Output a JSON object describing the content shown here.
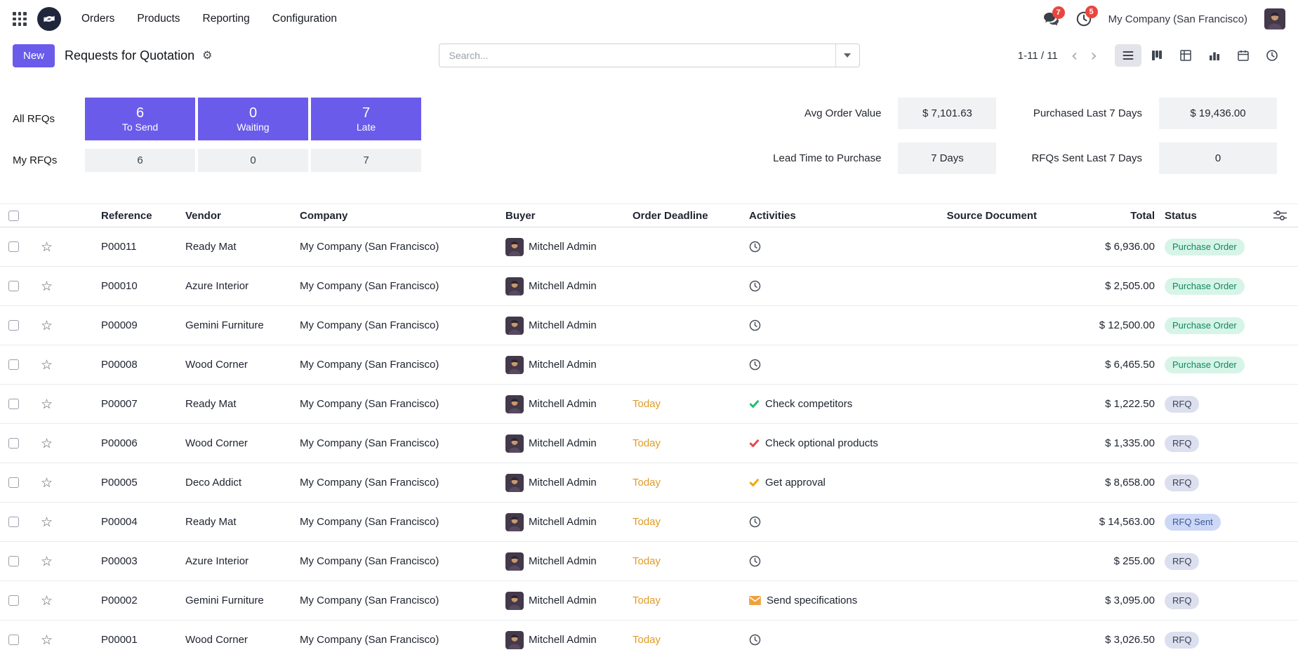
{
  "colors": {
    "primary": "#6B5BEA",
    "warning": "#DF9B28",
    "notification": "#E8473F",
    "success-bg": "#D7F4E8",
    "success-text": "#11865F",
    "rfq-bg": "#DCDFEE",
    "rfq-text": "#3A4154",
    "sent-bg": "#CDD8F6",
    "sent-text": "#3B5796"
  },
  "navbar": {
    "menu_items": [
      "Orders",
      "Products",
      "Reporting",
      "Configuration"
    ],
    "messages_badge": "7",
    "activities_badge": "5",
    "company_name": "My Company (San Francisco)"
  },
  "control_panel": {
    "new_button": "New",
    "title": "Requests for Quotation",
    "search": {
      "placeholder": "Search..."
    },
    "pager": {
      "text": "1-11 / 11",
      "prev": "‹",
      "next": "›"
    }
  },
  "dashboard": {
    "row_labels": {
      "all": "All RFQs",
      "my": "My RFQs"
    },
    "kpis": [
      {
        "all_value": "6",
        "label": "To Send",
        "my_value": "6"
      },
      {
        "all_value": "0",
        "label": "Waiting",
        "my_value": "0"
      },
      {
        "all_value": "7",
        "label": "Late",
        "my_value": "7"
      }
    ],
    "stats": [
      {
        "label": "Avg Order Value",
        "value": "$ 7,101.63"
      },
      {
        "label": "Purchased Last 7 Days",
        "value": "$ 19,436.00"
      },
      {
        "label": "Lead Time to Purchase",
        "value": "7 Days"
      },
      {
        "label": "RFQs Sent Last 7 Days",
        "value": "0"
      }
    ]
  },
  "table": {
    "columns": [
      "Reference",
      "Vendor",
      "Company",
      "Buyer",
      "Order Deadline",
      "Activities",
      "Source Document",
      "Total",
      "Status"
    ],
    "rows": [
      {
        "reference": "P00011",
        "vendor": "Ready Mat",
        "company": "My Company (San Francisco)",
        "buyer": "Mitchell Admin",
        "deadline": "",
        "activity": {
          "icon": "clock-icon",
          "label": ""
        },
        "source": "",
        "total": "$ 6,936.00",
        "status": {
          "label": "Purchase Order",
          "type": "success"
        }
      },
      {
        "reference": "P00010",
        "vendor": "Azure Interior",
        "company": "My Company (San Francisco)",
        "buyer": "Mitchell Admin",
        "deadline": "",
        "activity": {
          "icon": "clock-icon",
          "label": ""
        },
        "source": "",
        "total": "$ 2,505.00",
        "status": {
          "label": "Purchase Order",
          "type": "success"
        }
      },
      {
        "reference": "P00009",
        "vendor": "Gemini Furniture",
        "company": "My Company (San Francisco)",
        "buyer": "Mitchell Admin",
        "deadline": "",
        "activity": {
          "icon": "clock-icon",
          "label": ""
        },
        "source": "",
        "total": "$ 12,500.00",
        "status": {
          "label": "Purchase Order",
          "type": "success"
        }
      },
      {
        "reference": "P00008",
        "vendor": "Wood Corner",
        "company": "My Company (San Francisco)",
        "buyer": "Mitchell Admin",
        "deadline": "",
        "activity": {
          "icon": "clock-icon",
          "label": ""
        },
        "source": "",
        "total": "$ 6,465.50",
        "status": {
          "label": "Purchase Order",
          "type": "success"
        }
      },
      {
        "reference": "P00007",
        "vendor": "Ready Mat",
        "company": "My Company (San Francisco)",
        "buyer": "Mitchell Admin",
        "deadline": "Today",
        "activity": {
          "icon": "check-icon",
          "color": "#1FC16B",
          "label": "Check competitors"
        },
        "source": "",
        "total": "$ 1,222.50",
        "status": {
          "label": "RFQ",
          "type": "rfq"
        }
      },
      {
        "reference": "P00006",
        "vendor": "Wood Corner",
        "company": "My Company (San Francisco)",
        "buyer": "Mitchell Admin",
        "deadline": "Today",
        "activity": {
          "icon": "check-icon",
          "color": "#E5484D",
          "label": "Check optional products"
        },
        "source": "",
        "total": "$ 1,335.00",
        "status": {
          "label": "RFQ",
          "type": "rfq"
        }
      },
      {
        "reference": "P00005",
        "vendor": "Deco Addict",
        "company": "My Company (San Francisco)",
        "buyer": "Mitchell Admin",
        "deadline": "Today",
        "activity": {
          "icon": "check-icon",
          "color": "#EFA909",
          "label": "Get approval"
        },
        "source": "",
        "total": "$ 8,658.00",
        "status": {
          "label": "RFQ",
          "type": "rfq"
        }
      },
      {
        "reference": "P00004",
        "vendor": "Ready Mat",
        "company": "My Company (San Francisco)",
        "buyer": "Mitchell Admin",
        "deadline": "Today",
        "activity": {
          "icon": "clock-icon",
          "label": ""
        },
        "source": "",
        "total": "$ 14,563.00",
        "status": {
          "label": "RFQ Sent",
          "type": "sent"
        }
      },
      {
        "reference": "P00003",
        "vendor": "Azure Interior",
        "company": "My Company (San Francisco)",
        "buyer": "Mitchell Admin",
        "deadline": "Today",
        "activity": {
          "icon": "clock-icon",
          "label": ""
        },
        "source": "",
        "total": "$ 255.00",
        "status": {
          "label": "RFQ",
          "type": "rfq"
        }
      },
      {
        "reference": "P00002",
        "vendor": "Gemini Furniture",
        "company": "My Company (San Francisco)",
        "buyer": "Mitchell Admin",
        "deadline": "Today",
        "activity": {
          "icon": "envelope-icon",
          "color": "#F0A13A",
          "label": "Send specifications"
        },
        "source": "",
        "total": "$ 3,095.00",
        "status": {
          "label": "RFQ",
          "type": "rfq"
        }
      },
      {
        "reference": "P00001",
        "vendor": "Wood Corner",
        "company": "My Company (San Francisco)",
        "buyer": "Mitchell Admin",
        "deadline": "Today",
        "activity": {
          "icon": "clock-icon",
          "label": ""
        },
        "source": "",
        "total": "$ 3,026.50",
        "status": {
          "label": "RFQ",
          "type": "rfq"
        }
      }
    ]
  }
}
